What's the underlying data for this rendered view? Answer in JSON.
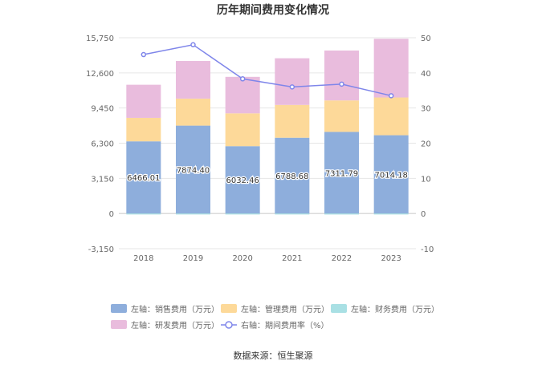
{
  "chart_data": {
    "type": "bar",
    "stacked": true,
    "title": "历年期间费用变化情况",
    "categories": [
      "2018",
      "2019",
      "2020",
      "2021",
      "2022",
      "2023"
    ],
    "y_left": {
      "ticks": [
        "-3,150",
        "0",
        "3,150",
        "6,300",
        "9,450",
        "12,600",
        "15,750"
      ],
      "min": -3150,
      "max": 15750
    },
    "y_right": {
      "ticks": [
        "-10",
        "0",
        "10",
        "20",
        "30",
        "40",
        "50"
      ],
      "min": -10,
      "max": 50
    },
    "series": [
      {
        "name": "左轴：销售费用（万元）",
        "type": "bar",
        "color": "#8eaedc",
        "values": [
          6466.01,
          7874.4,
          6032.46,
          6788.68,
          7311.79,
          7014.18
        ],
        "labels": [
          "6466.01",
          "7874.40",
          "6032.46",
          "6788.68",
          "7311.79",
          "7014.18"
        ]
      },
      {
        "name": "左轴：管理费用（万元）",
        "type": "bar",
        "color": "#fdd999",
        "values": [
          2100,
          2420,
          2940,
          2940,
          2820,
          3380
        ]
      },
      {
        "name": "左轴：财务费用（万元）",
        "type": "bar",
        "color": "#a9e0e4",
        "values": [
          -40,
          -40,
          -30,
          -30,
          -90,
          -80
        ]
      },
      {
        "name": "左轴：研发费用（万元）",
        "type": "bar",
        "color": "#e9bcdd",
        "values": [
          2970,
          3370,
          3270,
          4180,
          4470,
          5260
        ]
      },
      {
        "name": "右轴：期间费用率（%）",
        "type": "line",
        "color": "#7f86ea",
        "values": [
          45.2,
          48.0,
          38.3,
          36.0,
          36.8,
          33.5
        ]
      }
    ],
    "legend_position": "bottom",
    "grid": true
  },
  "source": "数据来源：恒生聚源"
}
